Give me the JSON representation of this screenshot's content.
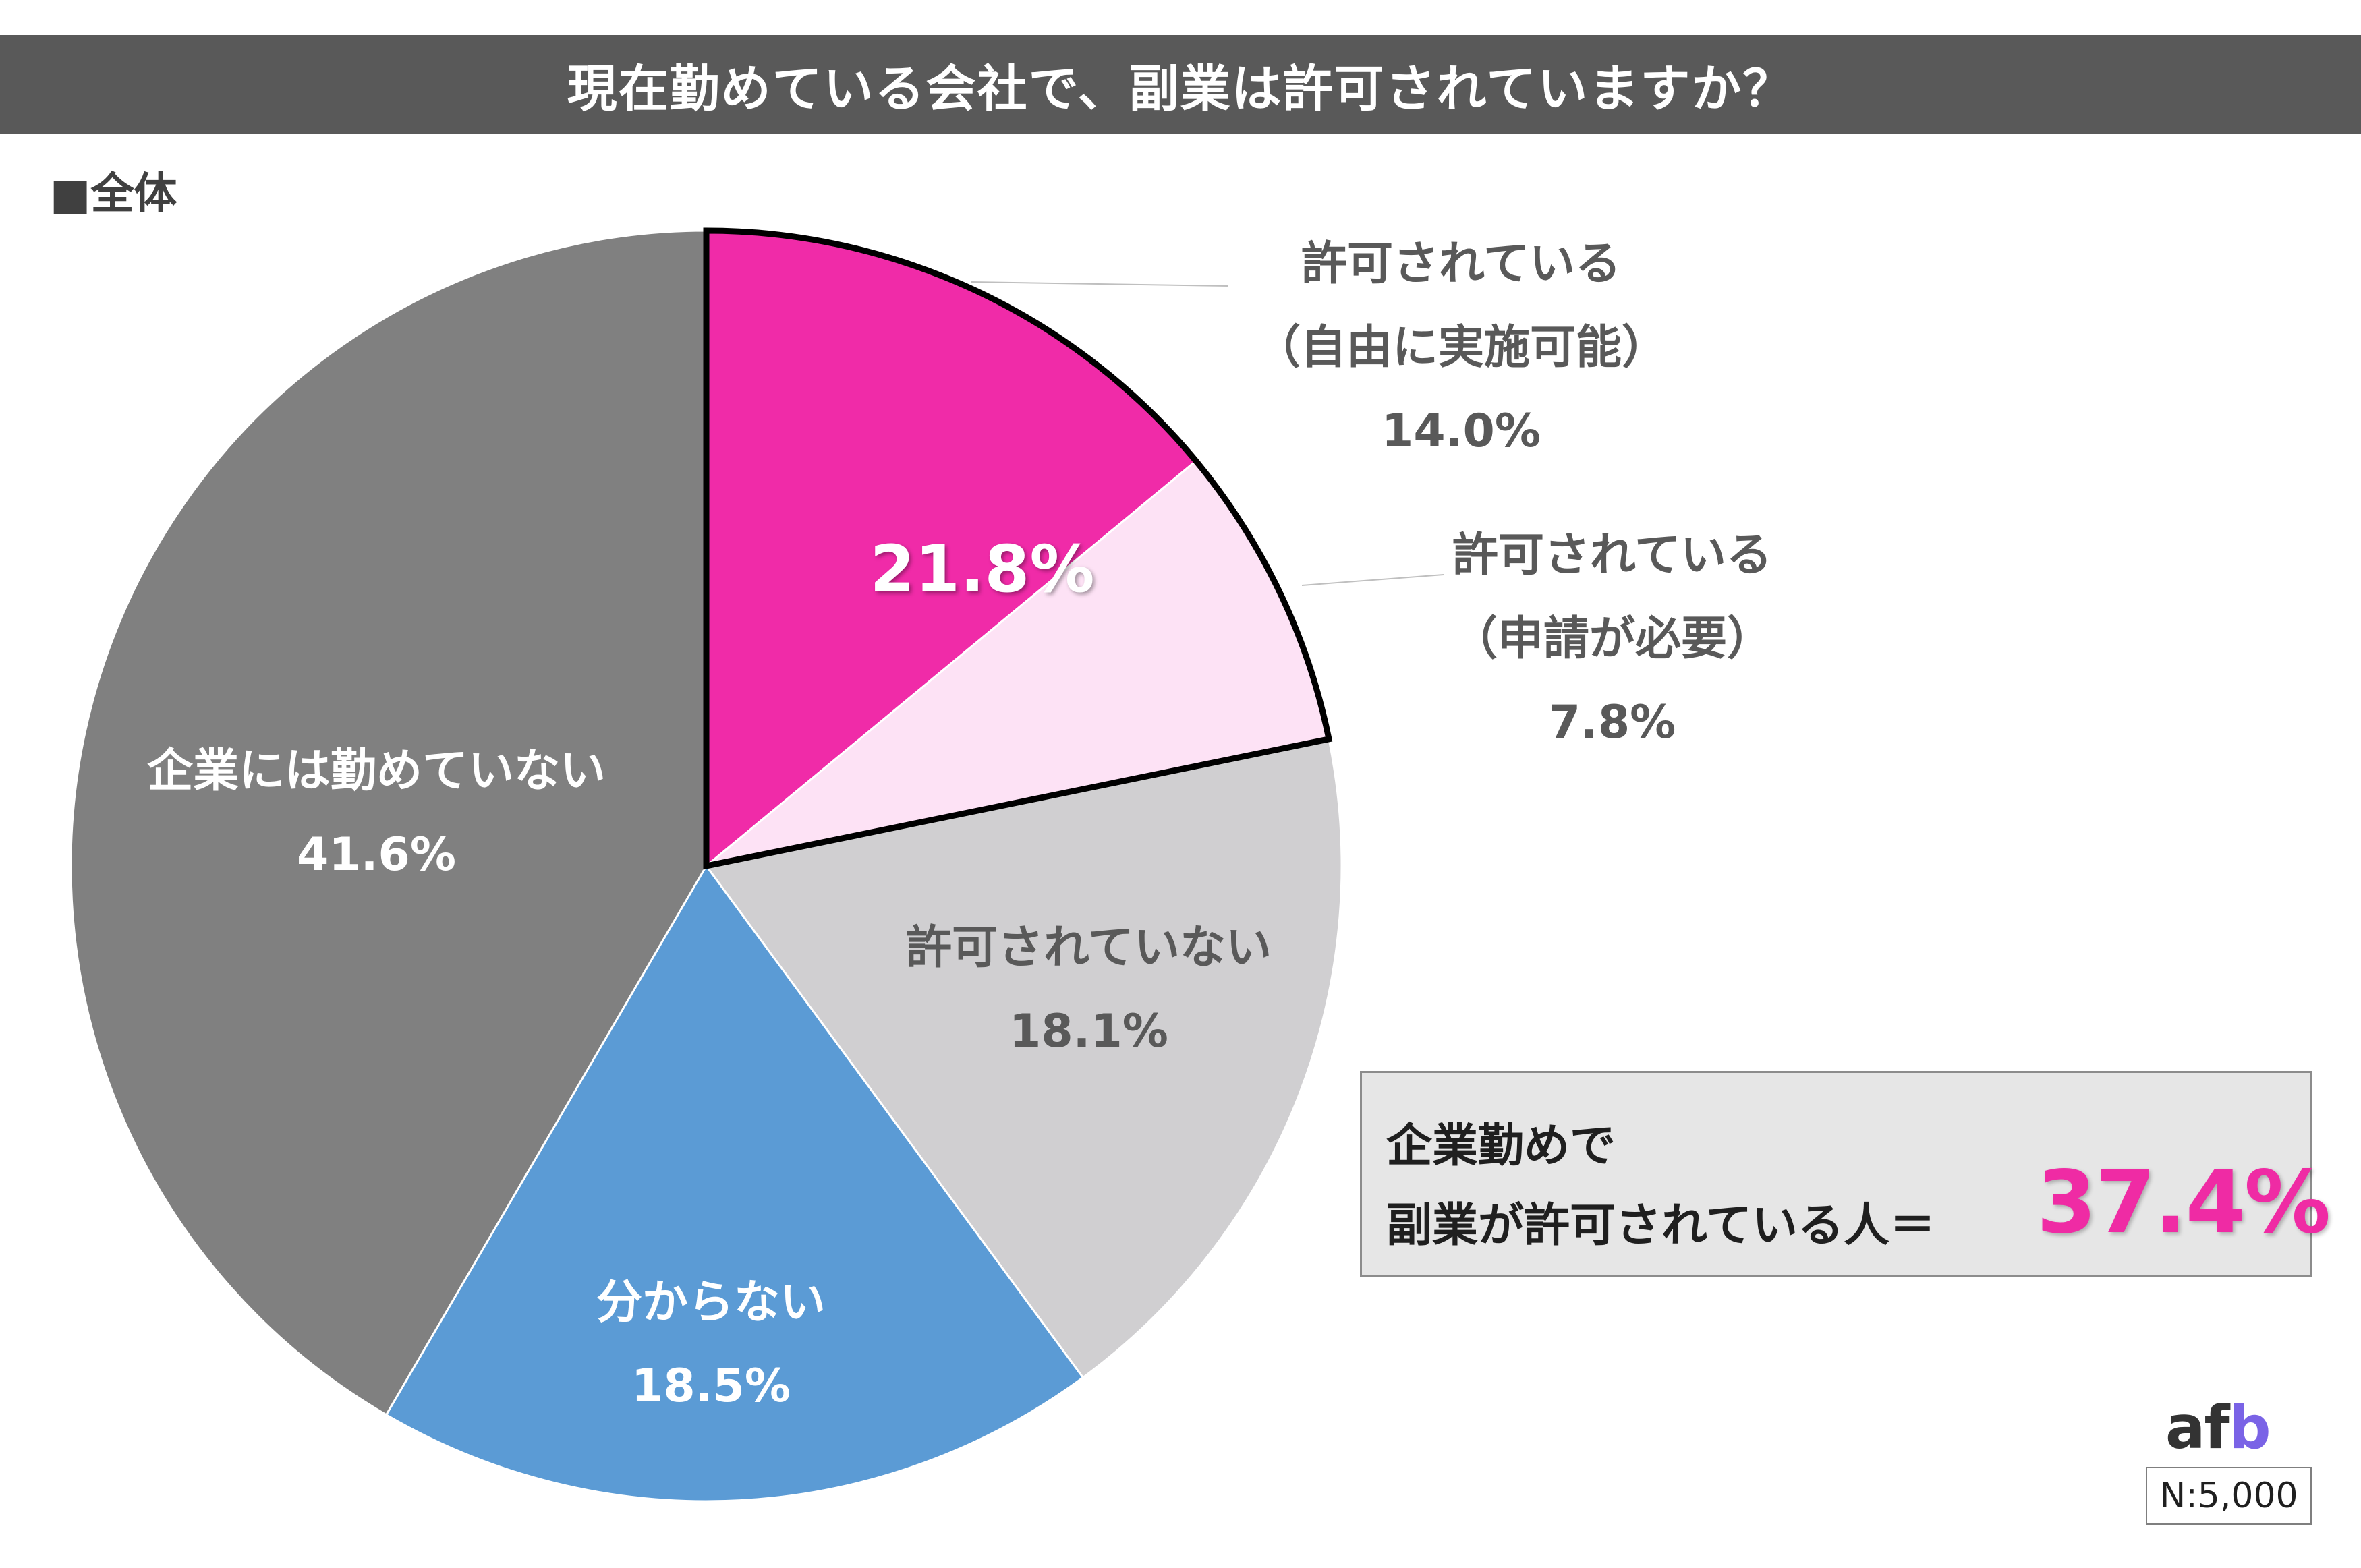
{
  "title": "現在勤めている会社で、副業は許可されていますか？",
  "subtitle": "■全体",
  "chart_data": {
    "type": "pie",
    "slices": [
      {
        "lines": [
          "許可されている",
          "（自由に実施可能）",
          "14.0%"
        ],
        "value": 14.0,
        "color": "#f02ba8"
      },
      {
        "lines": [
          "許可されている",
          "（申請が必要）",
          "7.8%"
        ],
        "value": 7.8,
        "color": "#fde2f5"
      },
      {
        "lines": [
          "許可されていない",
          "18.1%"
        ],
        "value": 18.1,
        "color": "#d0cfd1"
      },
      {
        "lines": [
          "分からない",
          "18.5%"
        ],
        "value": 18.5,
        "color": "#5b9bd5"
      },
      {
        "lines": [
          "企業には勤めていない",
          "41.6%"
        ],
        "value": 41.6,
        "color": "#808080"
      }
    ],
    "combined_label": "21.8%",
    "start": "12 o'clock, clockwise"
  },
  "summary": {
    "line1": "企業勤めで",
    "line2": "副業が許可されている人＝",
    "value": "37.4%"
  },
  "logo": {
    "text_a": "af",
    "text_b": "b"
  },
  "sample": "N:5,000"
}
